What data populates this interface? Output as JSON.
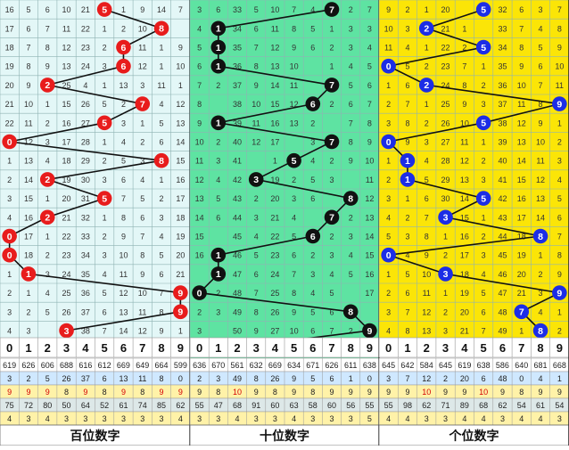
{
  "chart_data": {
    "type": "table",
    "sections": [
      {
        "name": "百位数字",
        "digits": [
          0,
          1,
          2,
          3,
          4,
          5,
          6,
          7,
          8,
          9
        ],
        "background": "#e3f7f7",
        "ball_color": "#e81c1c",
        "hit_sequence": [
          5,
          8,
          6,
          6,
          2,
          7,
          5,
          0,
          8,
          2,
          5,
          2,
          0,
          0,
          1,
          9,
          9,
          3
        ],
        "grid_rows": [
          [
            "16",
            "5",
            "6",
            "10",
            "21",
            "",
            "1",
            "9",
            "14",
            "7"
          ],
          [
            "17",
            "6",
            "7",
            "11",
            "22",
            "1",
            "2",
            "10",
            "",
            ""
          ],
          [
            "18",
            "7",
            "8",
            "12",
            "23",
            "2",
            "",
            "11",
            "1",
            "9"
          ],
          [
            "19",
            "8",
            "9",
            "13",
            "24",
            "3",
            "",
            "12",
            "1",
            "10"
          ],
          [
            "20",
            "9",
            "",
            "25",
            "4",
            "1",
            "13",
            "3",
            "11",
            "1"
          ],
          [
            "21",
            "10",
            "1",
            "15",
            "26",
            "5",
            "2",
            "",
            "4",
            "12"
          ],
          [
            "22",
            "11",
            "2",
            "16",
            "27",
            "",
            "3",
            "1",
            "5",
            "13"
          ],
          [
            "",
            "12",
            "3",
            "17",
            "28",
            "1",
            "4",
            "2",
            "6",
            "14"
          ],
          [
            "1",
            "13",
            "4",
            "18",
            "29",
            "2",
            "5",
            "3",
            "",
            "15"
          ],
          [
            "2",
            "14",
            "",
            "19",
            "30",
            "3",
            "6",
            "4",
            "1",
            "16"
          ],
          [
            "3",
            "15",
            "1",
            "20",
            "31",
            "",
            "7",
            "5",
            "2",
            "17"
          ],
          [
            "4",
            "16",
            "",
            "21",
            "32",
            "1",
            "8",
            "6",
            "3",
            "18"
          ],
          [
            "",
            "17",
            "1",
            "22",
            "33",
            "2",
            "9",
            "7",
            "4",
            "19"
          ],
          [
            "",
            "18",
            "2",
            "23",
            "34",
            "3",
            "10",
            "8",
            "5",
            "20"
          ],
          [
            "1",
            "",
            "3",
            "24",
            "35",
            "4",
            "11",
            "9",
            "6",
            "21"
          ],
          [
            "2",
            "1",
            "4",
            "25",
            "36",
            "5",
            "12",
            "10",
            "7",
            ""
          ],
          [
            "3",
            "2",
            "5",
            "26",
            "37",
            "6",
            "13",
            "11",
            "8",
            ""
          ],
          [
            "4",
            "3",
            "",
            "27",
            "38",
            "7",
            "14",
            "12",
            "9",
            "1"
          ]
        ],
        "stats": [
          [
            "619",
            "626",
            "606",
            "688",
            "616",
            "612",
            "669",
            "649",
            "664",
            "599"
          ],
          [
            "3",
            "2",
            "5",
            "26",
            "37",
            "6",
            "13",
            "11",
            "8",
            "0"
          ],
          [
            "9",
            "9",
            "9",
            "8",
            "9",
            "8",
            "9",
            "8",
            "9",
            "9"
          ],
          [
            "75",
            "72",
            "80",
            "50",
            "64",
            "52",
            "61",
            "74",
            "85",
            "62"
          ],
          [
            "4",
            "3",
            "4",
            "3",
            "3",
            "3",
            "3",
            "3",
            "3",
            "4"
          ]
        ]
      },
      {
        "name": "十位数字",
        "digits": [
          0,
          1,
          2,
          3,
          4,
          5,
          6,
          7,
          8,
          9
        ],
        "background": "#5ee3a2",
        "ball_color": "#111111",
        "hit_sequence": [
          7,
          1,
          1,
          1,
          7,
          6,
          1,
          7,
          5,
          3,
          8,
          7,
          6,
          1,
          1,
          0,
          8,
          9,
          1
        ],
        "grid_rows": [
          [
            "3",
            "6",
            "33",
            "5",
            "10",
            "7",
            "4",
            "",
            "2",
            "7"
          ],
          [
            "4",
            "",
            "34",
            "6",
            "11",
            "8",
            "5",
            "1",
            "3",
            "3"
          ],
          [
            "5",
            "",
            "35",
            "7",
            "12",
            "9",
            "6",
            "2",
            "3",
            "4"
          ],
          [
            "6",
            "1",
            "36",
            "8",
            "13",
            "10",
            "",
            "1",
            "4",
            "5"
          ],
          [
            "7",
            "2",
            "37",
            "9",
            "14",
            "11",
            "",
            "1",
            "5",
            "6"
          ],
          [
            "8",
            "",
            "38",
            "10",
            "15",
            "12",
            "1",
            "2",
            "6",
            "7"
          ],
          [
            "9",
            "1",
            "39",
            "11",
            "16",
            "13",
            "2",
            "",
            "7",
            "8"
          ],
          [
            "10",
            "2",
            "40",
            "12",
            "17",
            "",
            "3",
            "1",
            "8",
            "9"
          ],
          [
            "11",
            "3",
            "41",
            "",
            "1",
            "1",
            "4",
            "2",
            "9",
            "10"
          ],
          [
            "12",
            "4",
            "42",
            "1",
            "19",
            "2",
            "5",
            "3",
            "",
            "11"
          ],
          [
            "13",
            "5",
            "43",
            "2",
            "20",
            "3",
            "6",
            "",
            "1",
            "12"
          ],
          [
            "14",
            "6",
            "44",
            "3",
            "21",
            "4",
            "",
            "1",
            "2",
            "13"
          ],
          [
            "15",
            "",
            "45",
            "4",
            "22",
            "5",
            "1",
            "2",
            "3",
            "14"
          ],
          [
            "16",
            "1",
            "46",
            "5",
            "23",
            "6",
            "2",
            "3",
            "4",
            "15"
          ],
          [
            "",
            "1",
            "47",
            "6",
            "24",
            "7",
            "3",
            "4",
            "5",
            "16"
          ],
          [
            "1",
            "2",
            "48",
            "7",
            "25",
            "8",
            "4",
            "5",
            "",
            "17"
          ],
          [
            "2",
            "3",
            "49",
            "8",
            "26",
            "9",
            "5",
            "6",
            "1",
            ""
          ],
          [
            "3",
            "",
            "50",
            "9",
            "27",
            "10",
            "6",
            "7",
            "2",
            "1"
          ]
        ],
        "stats": [
          [
            "636",
            "670",
            "561",
            "632",
            "669",
            "634",
            "671",
            "626",
            "611",
            "638"
          ],
          [
            "2",
            "3",
            "49",
            "8",
            "26",
            "9",
            "5",
            "6",
            "1",
            "0"
          ],
          [
            "9",
            "8",
            "10",
            "9",
            "8",
            "9",
            "8",
            "9",
            "9",
            "9"
          ],
          [
            "55",
            "47",
            "68",
            "91",
            "60",
            "63",
            "58",
            "60",
            "56",
            "55"
          ],
          [
            "3",
            "3",
            "4",
            "3",
            "3",
            "4",
            "3",
            "3",
            "3",
            "5"
          ]
        ]
      },
      {
        "name": "个位数字",
        "digits": [
          0,
          1,
          2,
          3,
          4,
          5,
          6,
          7,
          8,
          9
        ],
        "background": "#fbe507",
        "ball_color": "#1c2de6",
        "hit_sequence": [
          5,
          2,
          5,
          0,
          2,
          9,
          5,
          0,
          1,
          1,
          5,
          3,
          8,
          0,
          3,
          9,
          7,
          8
        ],
        "grid_rows": [
          [
            "9",
            "2",
            "1",
            "20",
            "",
            "",
            "32",
            "6",
            "3",
            "7"
          ],
          [
            "10",
            "3",
            "",
            "21",
            "1",
            "",
            "33",
            "7",
            "4",
            "8"
          ],
          [
            "11",
            "4",
            "1",
            "22",
            "2",
            "",
            "34",
            "8",
            "5",
            "9"
          ],
          [
            "",
            "5",
            "2",
            "23",
            "7",
            "1",
            "35",
            "9",
            "6",
            "10"
          ],
          [
            "1",
            "6",
            "",
            "24",
            "8",
            "2",
            "36",
            "10",
            "7",
            "11"
          ],
          [
            "2",
            "7",
            "1",
            "25",
            "9",
            "3",
            "37",
            "11",
            "8",
            ""
          ],
          [
            "3",
            "8",
            "2",
            "26",
            "10",
            "",
            "38",
            "12",
            "9",
            "1"
          ],
          [
            "",
            "9",
            "3",
            "27",
            "11",
            "1",
            "39",
            "13",
            "10",
            "2"
          ],
          [
            "1",
            "",
            "4",
            "28",
            "12",
            "2",
            "40",
            "14",
            "11",
            "3"
          ],
          [
            "2",
            "",
            "5",
            "29",
            "13",
            "3",
            "41",
            "15",
            "12",
            "4"
          ],
          [
            "3",
            "1",
            "6",
            "30",
            "14",
            "",
            "42",
            "16",
            "13",
            "5"
          ],
          [
            "4",
            "2",
            "7",
            "",
            "15",
            "1",
            "43",
            "17",
            "14",
            "6"
          ],
          [
            "5",
            "3",
            "8",
            "1",
            "16",
            "2",
            "44",
            "18",
            "",
            "7"
          ],
          [
            "",
            "4",
            "9",
            "2",
            "17",
            "3",
            "45",
            "19",
            "1",
            "8"
          ],
          [
            "1",
            "5",
            "10",
            "",
            "18",
            "4",
            "46",
            "20",
            "2",
            "9"
          ],
          [
            "2",
            "6",
            "11",
            "1",
            "19",
            "5",
            "47",
            "21",
            "3",
            ""
          ],
          [
            "3",
            "7",
            "12",
            "2",
            "20",
            "6",
            "48",
            "",
            "4",
            "1"
          ],
          [
            "4",
            "8",
            "13",
            "3",
            "21",
            "7",
            "49",
            "1",
            "",
            "2"
          ]
        ],
        "stats": [
          [
            "645",
            "642",
            "584",
            "645",
            "619",
            "638",
            "586",
            "640",
            "681",
            "668"
          ],
          [
            "3",
            "7",
            "12",
            "2",
            "20",
            "6",
            "48",
            "0",
            "4",
            "1"
          ],
          [
            "9",
            "9",
            "10",
            "9",
            "9",
            "10",
            "9",
            "8",
            "9",
            "9"
          ],
          [
            "55",
            "98",
            "62",
            "71",
            "89",
            "68",
            "62",
            "54",
            "61",
            "54"
          ],
          [
            "4",
            "4",
            "3",
            "3",
            "4",
            "4",
            "3",
            "4",
            "4",
            "3"
          ]
        ]
      }
    ],
    "stat_row_colors": [
      "#ffffff",
      "#cfe8ff",
      "#fff2a8",
      "#dde8e8",
      "#fff2a8"
    ],
    "stat_highlight_color": "#d40000"
  }
}
